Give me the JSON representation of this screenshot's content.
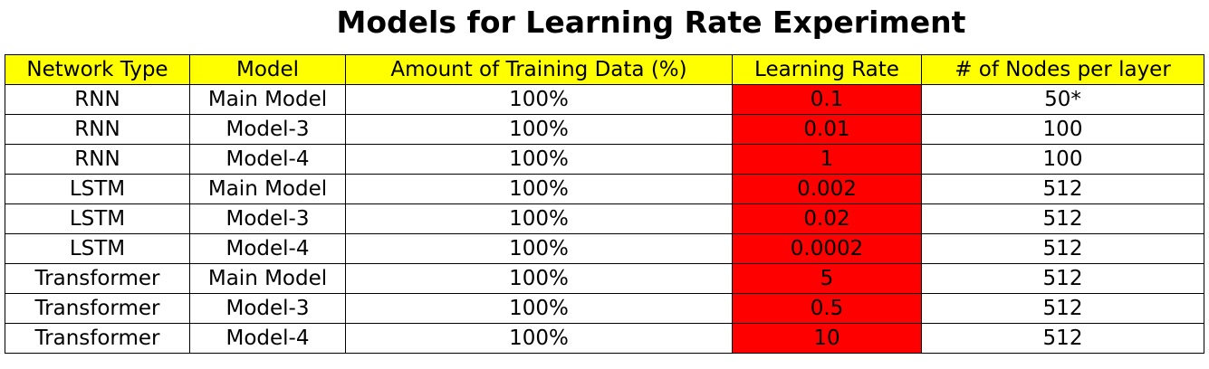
{
  "chart_data": {
    "type": "table",
    "title": "Models for Learning Rate Experiment",
    "columns": [
      "Network Type",
      "Model",
      "Amount of Training Data (%)",
      "Learning Rate",
      "# of Nodes per layer"
    ],
    "rows": [
      [
        "RNN",
        "Main Model",
        "100%",
        "0.1",
        "50*"
      ],
      [
        "RNN",
        "Model-3",
        "100%",
        "0.01",
        "100"
      ],
      [
        "RNN",
        "Model-4",
        "100%",
        "1",
        "100"
      ],
      [
        "LSTM",
        "Main Model",
        "100%",
        "0.002",
        "512"
      ],
      [
        "LSTM",
        "Model-3",
        "100%",
        "0.02",
        "512"
      ],
      [
        "LSTM",
        "Model-4",
        "100%",
        "0.0002",
        "512"
      ],
      [
        "Transformer",
        "Main Model",
        "100%",
        "5",
        "512"
      ],
      [
        "Transformer",
        "Model-3",
        "100%",
        "0.5",
        "512"
      ],
      [
        "Transformer",
        "Model-4",
        "100%",
        "10",
        "512"
      ]
    ],
    "header_color": "#ffff00",
    "highlight_column": 3,
    "highlight_color": "#ff0000",
    "cell_color": "#ffffff"
  }
}
